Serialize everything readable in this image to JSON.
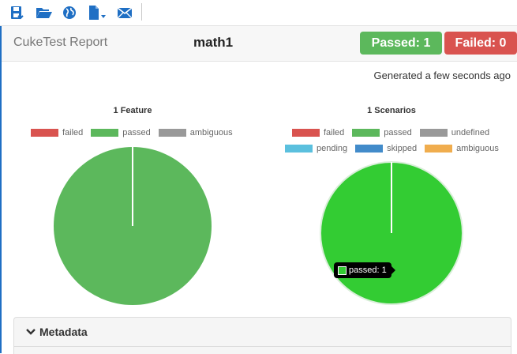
{
  "toolbar": {
    "buttons": [
      {
        "icon": "save-icon"
      },
      {
        "icon": "open-folder-icon"
      },
      {
        "icon": "globe-icon"
      },
      {
        "icon": "document-dropdown-icon"
      },
      {
        "icon": "envelope-icon"
      }
    ],
    "icon_color": "#1f6fc4"
  },
  "header": {
    "app_title": "CukeTest Report",
    "page_title": "math1",
    "passed_badge": "Passed: 1",
    "failed_badge": "Failed: 0"
  },
  "generated": "Generated a few seconds ago",
  "chart_data": [
    {
      "type": "pie",
      "title": "1 Feature",
      "legend": [
        {
          "name": "failed",
          "color": "#d9534f"
        },
        {
          "name": "passed",
          "color": "#5cb85c"
        },
        {
          "name": "ambiguous",
          "color": "#999999"
        }
      ],
      "slices": [
        {
          "name": "failed",
          "value": 0,
          "color": "#d9534f"
        },
        {
          "name": "passed",
          "value": 1,
          "color": "#5cb85c"
        },
        {
          "name": "ambiguous",
          "value": 0,
          "color": "#999999"
        }
      ]
    },
    {
      "type": "pie",
      "title": "1 Scenarios",
      "legend": [
        {
          "name": "failed",
          "color": "#d9534f"
        },
        {
          "name": "passed",
          "color": "#5cb85c"
        },
        {
          "name": "undefined",
          "color": "#999999"
        },
        {
          "name": "pending",
          "color": "#5bc0de"
        },
        {
          "name": "skipped",
          "color": "#428bca"
        },
        {
          "name": "ambiguous",
          "color": "#f0ad4e"
        }
      ],
      "slices": [
        {
          "name": "failed",
          "value": 0,
          "color": "#d9534f"
        },
        {
          "name": "passed",
          "value": 1,
          "color": "#33cc33"
        },
        {
          "name": "undefined",
          "value": 0,
          "color": "#999999"
        },
        {
          "name": "pending",
          "value": 0,
          "color": "#5bc0de"
        },
        {
          "name": "skipped",
          "value": 0,
          "color": "#428bca"
        },
        {
          "name": "ambiguous",
          "value": 0,
          "color": "#f0ad4e"
        }
      ],
      "highlighted": "passed"
    }
  ],
  "tooltip": {
    "text": "passed: 1"
  },
  "metadata": {
    "title": "Metadata"
  }
}
